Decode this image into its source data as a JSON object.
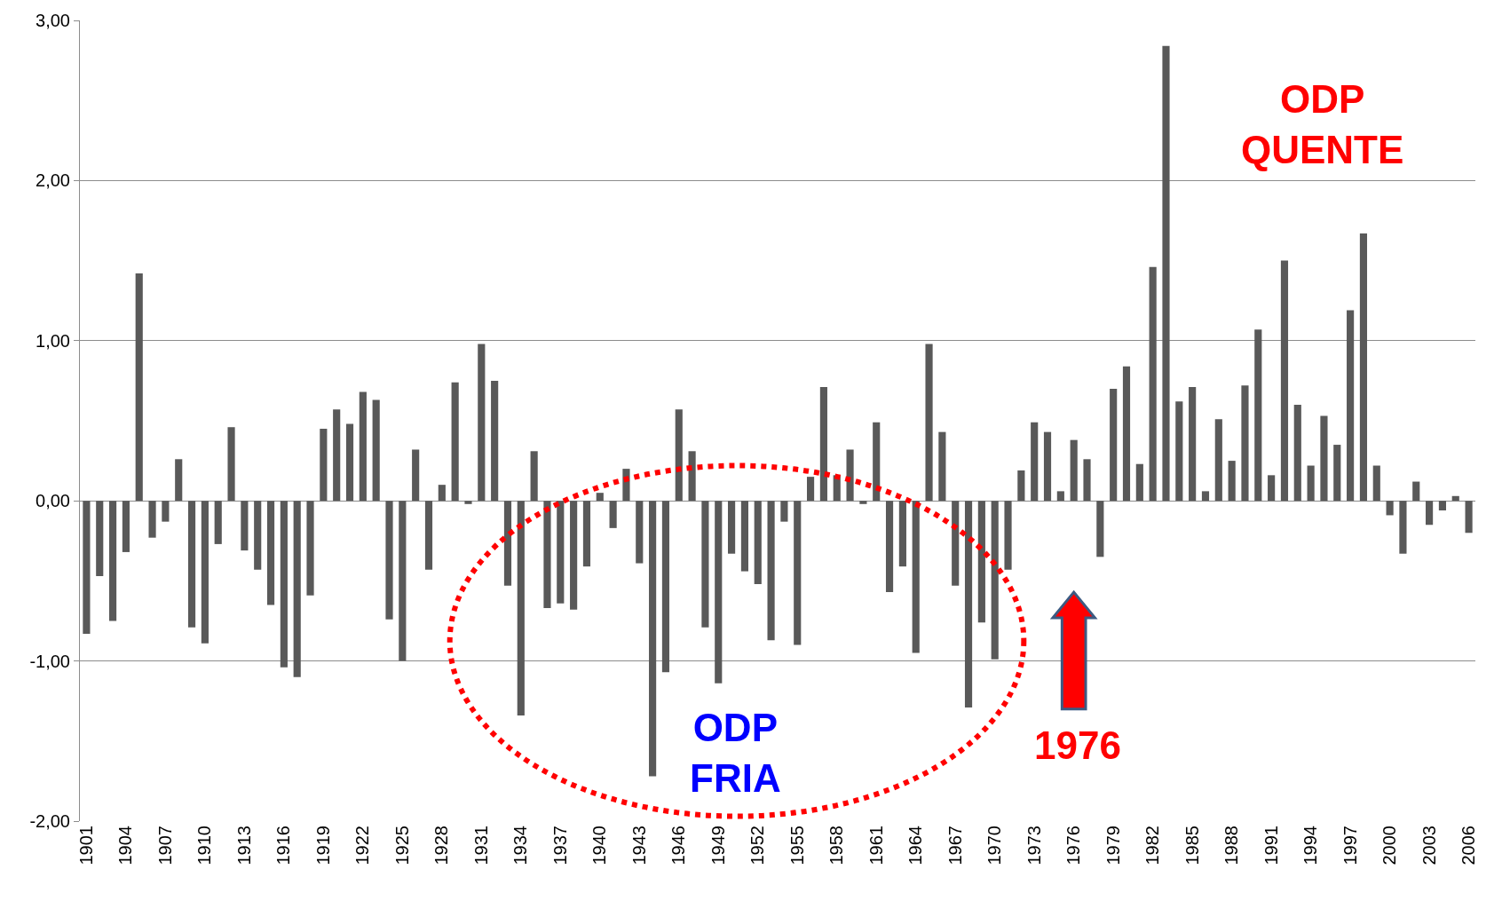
{
  "chart_data": {
    "type": "bar",
    "categories": [
      "1901",
      null,
      null,
      "1904",
      null,
      null,
      "1907",
      null,
      null,
      "1910",
      null,
      null,
      "1913",
      null,
      null,
      "1916",
      null,
      null,
      "1919",
      null,
      null,
      "1922",
      null,
      null,
      "1925",
      null,
      null,
      "1928",
      null,
      null,
      "1931",
      null,
      null,
      "1934",
      null,
      null,
      "1937",
      null,
      null,
      "1940",
      null,
      null,
      "1943",
      null,
      null,
      "1946",
      null,
      null,
      "1949",
      null,
      null,
      "1952",
      null,
      null,
      "1955",
      null,
      null,
      "1958",
      null,
      null,
      "1961",
      null,
      null,
      "1964",
      null,
      null,
      "1967",
      null,
      null,
      "1970",
      null,
      null,
      "1973",
      null,
      null,
      "1976",
      null,
      null,
      "1979",
      null,
      null,
      "1982",
      null,
      null,
      "1985",
      null,
      null,
      "1988",
      null,
      null,
      "1991",
      null,
      null,
      "1994",
      null,
      null,
      "1997",
      null,
      null,
      "2000",
      null,
      null,
      "2003",
      null,
      null,
      "2006"
    ],
    "values": [
      -0.83,
      -0.47,
      -0.75,
      -0.32,
      1.42,
      -0.23,
      -0.13,
      0.26,
      -0.79,
      -0.89,
      -0.27,
      0.46,
      -0.31,
      -0.43,
      -0.65,
      -1.04,
      -1.1,
      -0.59,
      0.45,
      0.57,
      0.48,
      0.68,
      0.63,
      -0.74,
      -1.0,
      0.32,
      -0.43,
      0.1,
      0.74,
      -0.02,
      0.98,
      0.75,
      -0.53,
      -1.34,
      0.31,
      -0.67,
      -0.64,
      -0.68,
      -0.41,
      0.05,
      -0.17,
      0.2,
      -0.39,
      -1.72,
      -1.07,
      0.57,
      0.31,
      -0.79,
      -1.14,
      -0.33,
      -0.44,
      -0.52,
      -0.87,
      -0.13,
      -0.9,
      0.15,
      0.71,
      0.16,
      0.32,
      -0.02,
      0.49,
      -0.57,
      -0.41,
      -0.95,
      0.98,
      0.43,
      -0.53,
      -1.29,
      -0.76,
      -0.99,
      -0.43,
      0.19,
      0.49,
      0.43,
      0.06,
      0.38,
      0.26,
      -0.35,
      0.7,
      0.84,
      0.23,
      1.46,
      2.84,
      0.62,
      0.71,
      0.06,
      0.51,
      0.25,
      0.72,
      1.07,
      0.16,
      1.5,
      0.6,
      0.22,
      0.53,
      0.35,
      1.19,
      1.67,
      0.22,
      -0.09,
      -0.33,
      0.12,
      -0.15,
      -0.06,
      0.03,
      -0.2
    ],
    "color": "#595959",
    "ylim": [
      -2,
      3
    ],
    "yticks": [
      {
        "value": -2,
        "label": "-2,00"
      },
      {
        "value": -1,
        "label": "-1,00"
      },
      {
        "value": 0,
        "label": "0,00"
      },
      {
        "value": 1,
        "label": "1,00"
      },
      {
        "value": 2,
        "label": "2,00"
      },
      {
        "value": 3,
        "label": "3,00"
      }
    ],
    "grid": "y",
    "annotations": [
      "ODP\nQUENTE",
      "ODP\nFRIA",
      "1976"
    ]
  }
}
